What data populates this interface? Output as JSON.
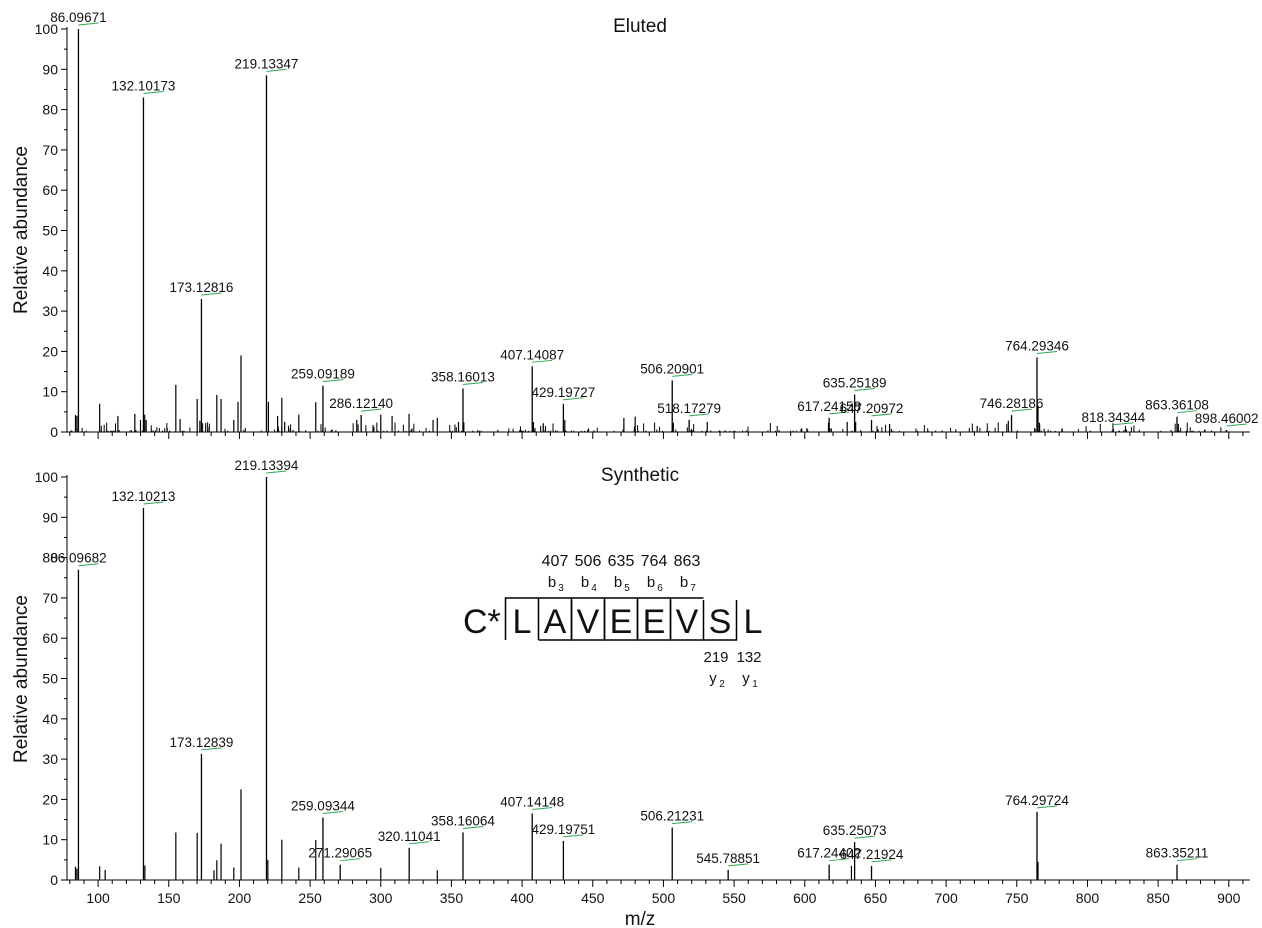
{
  "chart_data": [
    {
      "type": "bar",
      "title": "Eluted",
      "ylabel": "Relative abundance",
      "xlabel": "",
      "xlim": [
        78,
        915
      ],
      "ylim": [
        0,
        100
      ],
      "yticks": [
        0,
        10,
        20,
        30,
        40,
        50,
        60,
        70,
        80,
        90,
        100
      ],
      "labeled_peaks": [
        {
          "x": 86.09671,
          "y": 100,
          "label": "86.09671"
        },
        {
          "x": 132.10173,
          "y": 83,
          "label": "132.10173"
        },
        {
          "x": 173.12816,
          "y": 33,
          "label": "173.12816"
        },
        {
          "x": 219.13347,
          "y": 88.5,
          "label": "219.13347"
        },
        {
          "x": 259.09189,
          "y": 11.5,
          "label": "259.09189"
        },
        {
          "x": 286.1214,
          "y": 4.2,
          "label": "286.12140"
        },
        {
          "x": 358.16013,
          "y": 10.8,
          "label": "358.16013"
        },
        {
          "x": 407.14087,
          "y": 16.3,
          "label": "407.14087"
        },
        {
          "x": 429.19727,
          "y": 7,
          "label": "429.19727"
        },
        {
          "x": 506.20901,
          "y": 12.8,
          "label": "506.20901"
        },
        {
          "x": 518.17279,
          "y": 3,
          "label": "518.17279"
        },
        {
          "x": 617.24158,
          "y": 3.5,
          "label": "617.24158"
        },
        {
          "x": 635.25189,
          "y": 9.3,
          "label": "635.25189"
        },
        {
          "x": 647.20972,
          "y": 3,
          "label": "647.20972"
        },
        {
          "x": 746.28186,
          "y": 4.2,
          "label": "746.28186"
        },
        {
          "x": 764.29346,
          "y": 18.5,
          "label": "764.29346"
        },
        {
          "x": 818.34344,
          "y": 0.8,
          "label": "818.34344"
        },
        {
          "x": 863.36108,
          "y": 3.8,
          "label": "863.36108"
        },
        {
          "x": 898.46002,
          "y": 0.5,
          "label": "898.46002"
        }
      ],
      "minor_peaks": [
        {
          "x": 84,
          "y": 4.2
        },
        {
          "x": 85,
          "y": 4
        },
        {
          "x": 101.1,
          "y": 7
        },
        {
          "x": 114,
          "y": 4
        },
        {
          "x": 126,
          "y": 4.5
        },
        {
          "x": 130,
          "y": 3
        },
        {
          "x": 133,
          "y": 4.3
        },
        {
          "x": 134,
          "y": 3
        },
        {
          "x": 155,
          "y": 11.7
        },
        {
          "x": 158,
          "y": 3.2
        },
        {
          "x": 170.1,
          "y": 8.2
        },
        {
          "x": 172,
          "y": 2.8
        },
        {
          "x": 184,
          "y": 9.2
        },
        {
          "x": 187,
          "y": 8.2
        },
        {
          "x": 196,
          "y": 3
        },
        {
          "x": 199,
          "y": 7.5
        },
        {
          "x": 201.1,
          "y": 19
        },
        {
          "x": 220.5,
          "y": 7.5
        },
        {
          "x": 227,
          "y": 4
        },
        {
          "x": 230,
          "y": 8.5
        },
        {
          "x": 232,
          "y": 2.5
        },
        {
          "x": 242,
          "y": 4.3
        },
        {
          "x": 254,
          "y": 7.4
        },
        {
          "x": 283,
          "y": 3
        },
        {
          "x": 300,
          "y": 4.3
        },
        {
          "x": 308,
          "y": 4
        },
        {
          "x": 320,
          "y": 4.5
        },
        {
          "x": 337,
          "y": 3
        },
        {
          "x": 340,
          "y": 3.5
        },
        {
          "x": 355,
          "y": 2.5
        },
        {
          "x": 408,
          "y": 2.5
        },
        {
          "x": 430.2,
          "y": 3
        },
        {
          "x": 472,
          "y": 3.5
        },
        {
          "x": 480,
          "y": 3.8
        },
        {
          "x": 507,
          "y": 2.3
        },
        {
          "x": 531,
          "y": 2.5
        },
        {
          "x": 630,
          "y": 2.5
        },
        {
          "x": 636,
          "y": 2.5
        },
        {
          "x": 660,
          "y": 2
        },
        {
          "x": 722,
          "y": 1.5
        },
        {
          "x": 744,
          "y": 2.8
        },
        {
          "x": 765,
          "y": 6.5
        },
        {
          "x": 766,
          "y": 2.3
        },
        {
          "x": 864.3,
          "y": 2
        }
      ]
    },
    {
      "type": "bar",
      "title": "Synthetic",
      "ylabel": "Relative abundance",
      "xlabel": "m/z",
      "xlim": [
        78,
        915
      ],
      "ylim": [
        0,
        100
      ],
      "xticks": [
        100,
        150,
        200,
        250,
        300,
        350,
        400,
        450,
        500,
        550,
        600,
        650,
        700,
        750,
        800,
        850,
        900
      ],
      "yticks": [
        0,
        10,
        20,
        30,
        40,
        50,
        60,
        70,
        80,
        90,
        100
      ],
      "labeled_peaks": [
        {
          "x": 86.09682,
          "y": 77,
          "label": "86.09682"
        },
        {
          "x": 132.10213,
          "y": 92.3,
          "label": "132.10213"
        },
        {
          "x": 173.12839,
          "y": 31.3,
          "label": "173.12839"
        },
        {
          "x": 219.13394,
          "y": 100,
          "label": "219.13394"
        },
        {
          "x": 259.09344,
          "y": 15.5,
          "label": "259.09344"
        },
        {
          "x": 271.29065,
          "y": 3.8,
          "label": "271.29065"
        },
        {
          "x": 320.11041,
          "y": 8,
          "label": "320.11041"
        },
        {
          "x": 358.16064,
          "y": 11.8,
          "label": "358.16064"
        },
        {
          "x": 407.14148,
          "y": 16.5,
          "label": "407.14148"
        },
        {
          "x": 429.19751,
          "y": 9.7,
          "label": "429.19751"
        },
        {
          "x": 506.21231,
          "y": 13,
          "label": "506.21231"
        },
        {
          "x": 545.78851,
          "y": 2.5,
          "label": "545.78851"
        },
        {
          "x": 617.24402,
          "y": 3.8,
          "label": "617.24402"
        },
        {
          "x": 635.25073,
          "y": 9.4,
          "label": "635.25073"
        },
        {
          "x": 647.21924,
          "y": 3.5,
          "label": "647.21924"
        },
        {
          "x": 764.29724,
          "y": 16.9,
          "label": "764.29724"
        },
        {
          "x": 863.35211,
          "y": 3.8,
          "label": "863.35211"
        }
      ],
      "minor_peaks": [
        {
          "x": 84,
          "y": 3.3
        },
        {
          "x": 85,
          "y": 2.8
        },
        {
          "x": 101.1,
          "y": 3.4
        },
        {
          "x": 105,
          "y": 2.5
        },
        {
          "x": 133.1,
          "y": 3.6
        },
        {
          "x": 155,
          "y": 11.8
        },
        {
          "x": 170.1,
          "y": 11.7
        },
        {
          "x": 182,
          "y": 2.4
        },
        {
          "x": 184,
          "y": 4.9
        },
        {
          "x": 187,
          "y": 9
        },
        {
          "x": 196,
          "y": 3.1
        },
        {
          "x": 201.1,
          "y": 22.5
        },
        {
          "x": 220.1,
          "y": 5
        },
        {
          "x": 230,
          "y": 10
        },
        {
          "x": 242,
          "y": 3.1
        },
        {
          "x": 254,
          "y": 9.9
        },
        {
          "x": 300,
          "y": 3
        },
        {
          "x": 340,
          "y": 2.4
        },
        {
          "x": 633,
          "y": 3.5
        },
        {
          "x": 765,
          "y": 4.5
        }
      ]
    }
  ],
  "inset": {
    "prefix": "C*",
    "residues": [
      "L",
      "A",
      "V",
      "E",
      "E",
      "V",
      "S",
      "L"
    ],
    "b_ions": [
      {
        "mass": "407",
        "ion": "b",
        "sub": "3"
      },
      {
        "mass": "506",
        "ion": "b",
        "sub": "4"
      },
      {
        "mass": "635",
        "ion": "b",
        "sub": "5"
      },
      {
        "mass": "764",
        "ion": "b",
        "sub": "6"
      },
      {
        "mass": "863",
        "ion": "b",
        "sub": "7"
      }
    ],
    "y_ions": [
      {
        "mass": "219",
        "ion": "y",
        "sub": "2"
      },
      {
        "mass": "132",
        "ion": "y",
        "sub": "1"
      }
    ]
  },
  "colors": {
    "peak": "#000000",
    "bracket": "#2fa84f",
    "axis": "#000000"
  }
}
